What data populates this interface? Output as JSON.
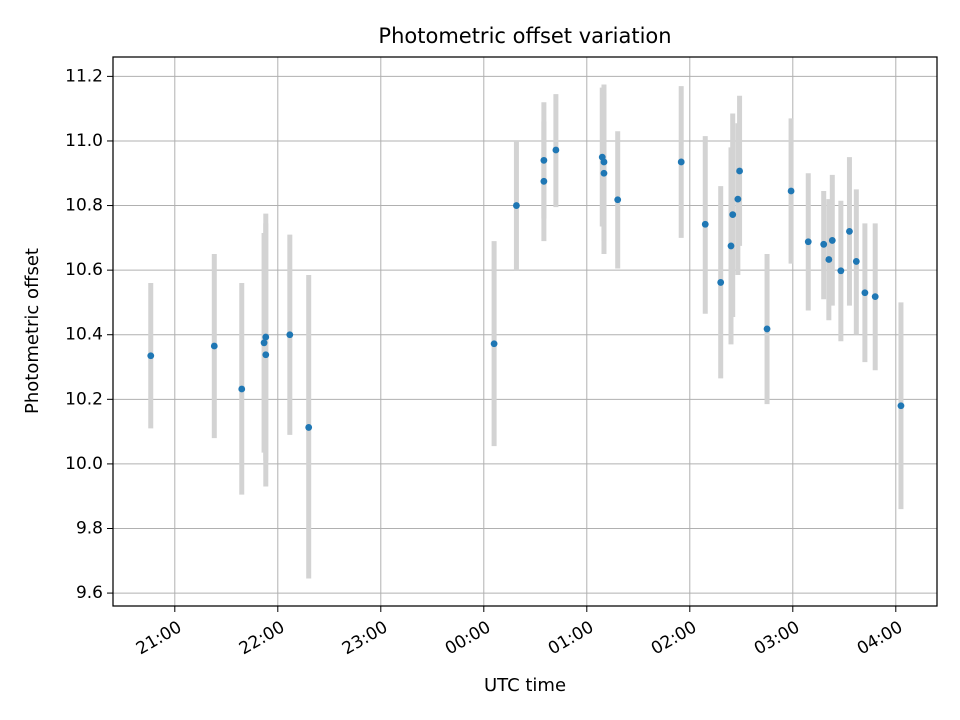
{
  "chart_data": {
    "type": "scatter",
    "title": "Photometric offset variation",
    "xlabel": "UTC time",
    "ylabel": "Photometric offset",
    "x_unit": "UTC time (HH:MM), day 1 evening to day 2 morning",
    "xlim": [
      "20:24",
      "04:24"
    ],
    "ylim": [
      9.56,
      11.26
    ],
    "grid": true,
    "x_tick_labels": [
      "21:00",
      "22:00",
      "23:00",
      "00:00",
      "01:00",
      "02:00",
      "03:00",
      "04:00"
    ],
    "y_ticks": [
      9.6,
      9.8,
      10.0,
      10.2,
      10.4,
      10.6,
      10.8,
      11.0,
      11.2
    ],
    "y_tick_labels": [
      "9.6",
      "9.8",
      "10.0",
      "10.2",
      "10.4",
      "10.6",
      "10.8",
      "11.0",
      "11.2"
    ],
    "marker_color": "#1f77b4",
    "errorbar_color": "#d3d3d3",
    "points": [
      {
        "x": "20:46",
        "y": 10.335,
        "lo": 10.11,
        "hi": 10.56
      },
      {
        "x": "21:23",
        "y": 10.365,
        "lo": 10.08,
        "hi": 10.65
      },
      {
        "x": "21:39",
        "y": 10.232,
        "lo": 9.905,
        "hi": 10.56
      },
      {
        "x": "21:52",
        "y": 10.375,
        "lo": 10.035,
        "hi": 10.715
      },
      {
        "x": "21:53",
        "y": 10.393,
        "lo": 10.01,
        "hi": 10.775
      },
      {
        "x": "21:53",
        "y": 10.338,
        "lo": 9.93,
        "hi": 10.745
      },
      {
        "x": "22:07",
        "y": 10.4,
        "lo": 10.09,
        "hi": 10.71
      },
      {
        "x": "22:18",
        "y": 10.113,
        "lo": 9.645,
        "hi": 10.585
      },
      {
        "x": "00:06",
        "y": 10.372,
        "lo": 10.055,
        "hi": 10.69
      },
      {
        "x": "00:19",
        "y": 10.8,
        "lo": 10.6,
        "hi": 11.0
      },
      {
        "x": "00:35",
        "y": 10.94,
        "lo": 10.76,
        "hi": 11.12
      },
      {
        "x": "00:35",
        "y": 10.875,
        "lo": 10.69,
        "hi": 11.06
      },
      {
        "x": "00:42",
        "y": 10.972,
        "lo": 10.795,
        "hi": 11.145
      },
      {
        "x": "01:09",
        "y": 10.95,
        "lo": 10.735,
        "hi": 11.165
      },
      {
        "x": "01:10",
        "y": 10.935,
        "lo": 10.69,
        "hi": 11.175
      },
      {
        "x": "01:10",
        "y": 10.9,
        "lo": 10.65,
        "hi": 11.15
      },
      {
        "x": "01:18",
        "y": 10.818,
        "lo": 10.605,
        "hi": 11.03
      },
      {
        "x": "01:55",
        "y": 10.935,
        "lo": 10.7,
        "hi": 11.17
      },
      {
        "x": "02:09",
        "y": 10.742,
        "lo": 10.465,
        "hi": 11.015
      },
      {
        "x": "02:18",
        "y": 10.562,
        "lo": 10.265,
        "hi": 10.86
      },
      {
        "x": "02:24",
        "y": 10.675,
        "lo": 10.37,
        "hi": 10.98
      },
      {
        "x": "02:25",
        "y": 10.772,
        "lo": 10.455,
        "hi": 11.085
      },
      {
        "x": "02:28",
        "y": 10.82,
        "lo": 10.585,
        "hi": 11.055
      },
      {
        "x": "02:29",
        "y": 10.907,
        "lo": 10.675,
        "hi": 11.14
      },
      {
        "x": "02:45",
        "y": 10.418,
        "lo": 10.185,
        "hi": 10.65
      },
      {
        "x": "02:59",
        "y": 10.845,
        "lo": 10.62,
        "hi": 11.07
      },
      {
        "x": "03:09",
        "y": 10.688,
        "lo": 10.475,
        "hi": 10.9
      },
      {
        "x": "03:18",
        "y": 10.68,
        "lo": 10.51,
        "hi": 10.845
      },
      {
        "x": "03:21",
        "y": 10.633,
        "lo": 10.445,
        "hi": 10.82
      },
      {
        "x": "03:23",
        "y": 10.692,
        "lo": 10.49,
        "hi": 10.895
      },
      {
        "x": "03:28",
        "y": 10.598,
        "lo": 10.38,
        "hi": 10.815
      },
      {
        "x": "03:33",
        "y": 10.72,
        "lo": 10.49,
        "hi": 10.95
      },
      {
        "x": "03:37",
        "y": 10.627,
        "lo": 10.4,
        "hi": 10.85
      },
      {
        "x": "03:42",
        "y": 10.53,
        "lo": 10.315,
        "hi": 10.745
      },
      {
        "x": "03:48",
        "y": 10.518,
        "lo": 10.29,
        "hi": 10.745
      },
      {
        "x": "04:03",
        "y": 10.18,
        "lo": 9.86,
        "hi": 10.5
      }
    ]
  }
}
